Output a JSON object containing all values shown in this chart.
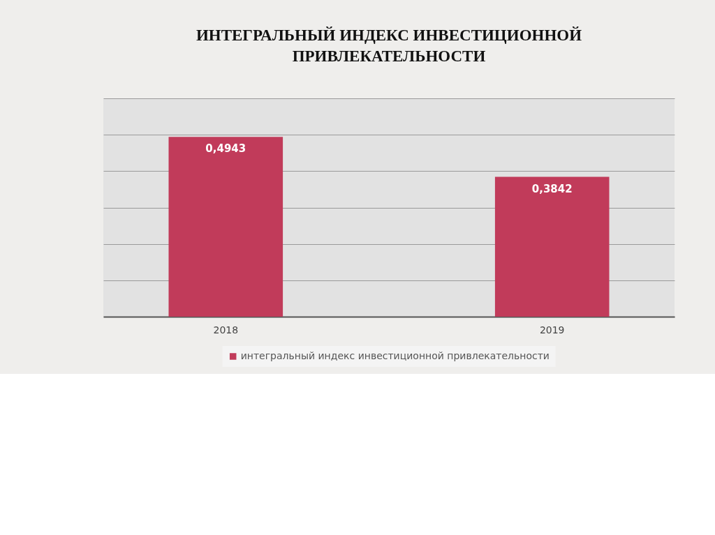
{
  "chart_data": {
    "type": "bar",
    "title": "ИНТЕГРАЛЬНЫЙ ИНДЕКС ИНВЕСТИЦИОННОЙ ПРИВЛЕКАТЕЛЬНОСТИ",
    "categories": [
      "2018",
      "2019"
    ],
    "series": [
      {
        "name": "интегральный индекс инвестиционной привлекательности",
        "color": "#c13b5a",
        "values": [
          0.4943,
          0.3842
        ],
        "value_labels": [
          "0,4943",
          "0,3842"
        ]
      }
    ],
    "ylim": [
      0,
      0.6
    ],
    "yticks": [
      {
        "value": 0,
        "label": null
      },
      {
        "value": 0.1,
        "label": null
      },
      {
        "value": 0.2,
        "label": null
      },
      {
        "value": 0.3,
        "label": null
      },
      {
        "value": 0.4,
        "label": null
      },
      {
        "value": 0.5,
        "label": null
      },
      {
        "value": 0.6,
        "label": null
      }
    ],
    "tick_labels": "x",
    "grid": "y",
    "legend": "bottom"
  }
}
